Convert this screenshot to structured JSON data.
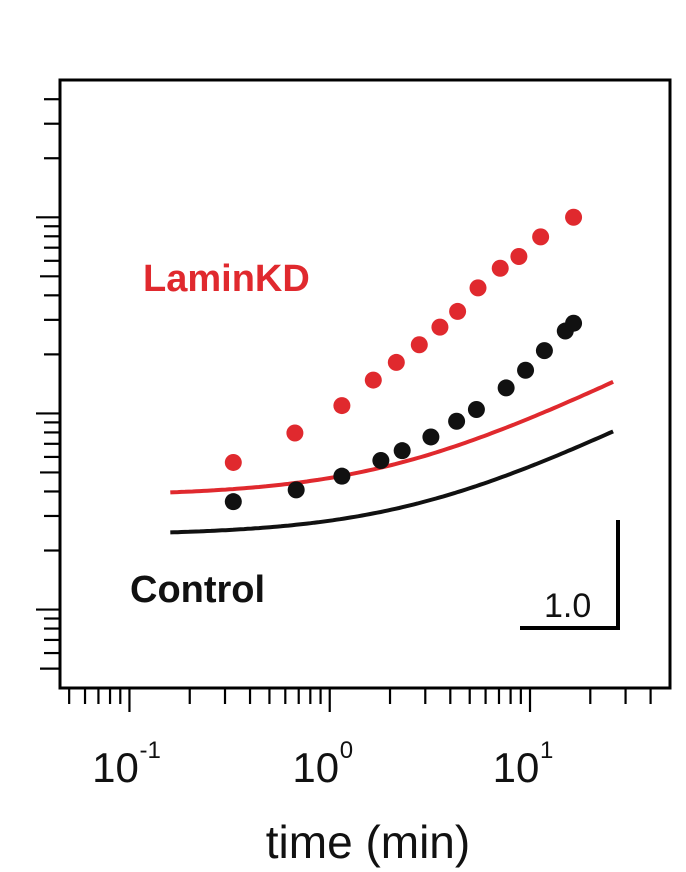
{
  "chart_data": {
    "type": "line",
    "x_scale": "log",
    "y_scale": "log",
    "xlabel": "time (min)",
    "xlim": [
      0.045,
      50
    ],
    "ylim_decades": [
      -1.4,
      1.7
    ],
    "x_ticks": [
      {
        "base": "10",
        "exp": "-1",
        "value": 0.1
      },
      {
        "base": "10",
        "exp": "0",
        "value": 1
      },
      {
        "base": "10",
        "exp": "1",
        "value": 10
      }
    ],
    "scale_bar": {
      "label": "1.0"
    },
    "series": [
      {
        "name": "LaminKD",
        "color": "#e0292e",
        "points_x": [
          0.33,
          0.67,
          1.15,
          1.65,
          2.15,
          2.8,
          3.55,
          4.35,
          5.5,
          7.1,
          8.8,
          11.3,
          16.5
        ],
        "points_logy": [
          -0.25,
          -0.1,
          0.04,
          0.17,
          0.26,
          0.35,
          0.44,
          0.52,
          0.64,
          0.74,
          0.8,
          0.9,
          1.0
        ],
        "fit_x_range": [
          0.16,
          26
        ],
        "fit": {
          "a": 0.25,
          "b": 0.52,
          "c": -0.42
        }
      },
      {
        "name": "Control",
        "color": "#111111",
        "points_x": [
          0.33,
          0.68,
          1.15,
          1.8,
          2.3,
          3.2,
          4.3,
          5.4,
          7.6,
          9.5,
          11.8,
          15.0,
          16.5
        ],
        "points_logy": [
          -0.45,
          -0.39,
          -0.32,
          -0.24,
          -0.19,
          -0.12,
          -0.04,
          0.02,
          0.13,
          0.22,
          0.32,
          0.42,
          0.46
        ],
        "fit_x_range": [
          0.16,
          26
        ],
        "fit": {
          "a": 0.25,
          "b": 0.4,
          "c": -0.62
        }
      }
    ]
  }
}
